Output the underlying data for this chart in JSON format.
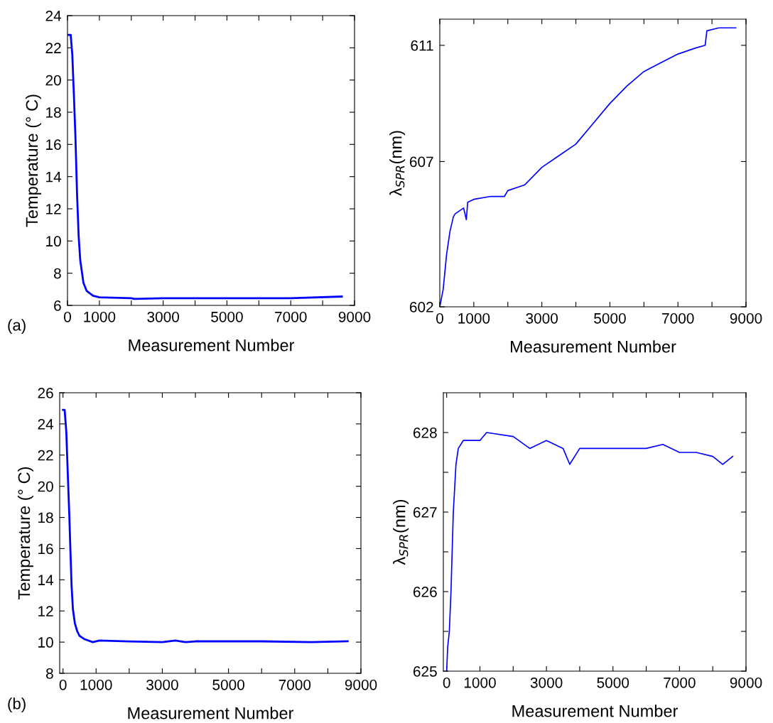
{
  "chart_data": [
    {
      "type": "line",
      "xlabel": "Measurement Number",
      "ylabel": "Temperature (° C)",
      "annotations": [
        "(a)"
      ],
      "xlim": [
        0,
        9000
      ],
      "xticks": [
        0,
        1000,
        {
          "value": 2000,
          "label": null
        },
        3000,
        {
          "value": 4000,
          "label": null
        },
        5000,
        {
          "value": 6000,
          "label": null
        },
        7000,
        {
          "value": 8000,
          "label": null
        },
        9000
      ],
      "ylim": [
        6,
        24
      ],
      "yticks": [
        6,
        8,
        10,
        12,
        14,
        16,
        18,
        20,
        22,
        24
      ],
      "grid": false,
      "marker": "none",
      "line_style": "solid",
      "series": [
        {
          "color": "#0000ff",
          "x": [
            0,
            100,
            150,
            200,
            250,
            300,
            350,
            400,
            500,
            600,
            800,
            1000,
            2000,
            2100,
            3000,
            5000,
            7000,
            8600
          ],
          "values": [
            22.8,
            22.8,
            21.6,
            19.1,
            16.4,
            12.9,
            10.3,
            8.8,
            7.4,
            6.9,
            6.6,
            6.5,
            6.45,
            6.4,
            6.45,
            6.45,
            6.45,
            6.55
          ]
        }
      ]
    },
    {
      "type": "line",
      "xlabel": "Measurement Number",
      "ylabel": "λ$_{SPR}$(nm)",
      "xlim": [
        0,
        9000
      ],
      "xticks": [
        0,
        1000,
        {
          "value": 2000,
          "label": null
        },
        3000,
        {
          "value": 4000,
          "label": null
        },
        5000,
        {
          "value": 6000,
          "label": null
        },
        7000,
        {
          "value": 8000,
          "label": null
        },
        9000
      ],
      "ylim": [
        602,
        611.9
      ],
      "yticks": [
        602,
        607,
        611
      ],
      "grid": false,
      "marker": "none",
      "line_style": "solid",
      "series": [
        {
          "color": "#0000ff",
          "x": [
            0,
            100,
            200,
            300,
            400,
            450,
            700,
            780,
            820,
            1000,
            1500,
            1900,
            2000,
            2500,
            3000,
            3500,
            4000,
            4500,
            5000,
            5500,
            6000,
            6500,
            7000,
            7500,
            7800,
            7850,
            8200,
            8700
          ],
          "values": [
            602.0,
            602.6,
            603.8,
            604.6,
            605.1,
            605.2,
            605.4,
            605.0,
            605.6,
            605.7,
            605.8,
            605.8,
            606.0,
            606.2,
            606.8,
            607.2,
            607.6,
            608.3,
            609.0,
            609.6,
            610.1,
            610.4,
            610.7,
            610.9,
            611.0,
            611.5,
            611.6,
            611.6
          ]
        }
      ]
    },
    {
      "type": "line",
      "xlabel": "Measurement Number",
      "ylabel": "Temperature (° C)",
      "annotations": [
        "(b)"
      ],
      "xlim": [
        -100,
        9000
      ],
      "xticks": [
        0,
        1000,
        {
          "value": 2000,
          "label": null
        },
        3000,
        {
          "value": 4000,
          "label": null
        },
        5000,
        {
          "value": 6000,
          "label": null
        },
        7000,
        {
          "value": 8000,
          "label": null
        },
        9000
      ],
      "ylim": [
        8,
        26
      ],
      "yticks": [
        8,
        10,
        12,
        14,
        16,
        18,
        20,
        22,
        24,
        26
      ],
      "grid": false,
      "marker": "none",
      "line_style": "solid",
      "series": [
        {
          "color": "#0000ff",
          "x": [
            0,
            50,
            100,
            150,
            190,
            230,
            260,
            300,
            360,
            430,
            500,
            640,
            900,
            1100,
            2000,
            3000,
            3400,
            3700,
            4000,
            6000,
            7500,
            8600
          ],
          "values": [
            24.9,
            24.9,
            23.5,
            20.5,
            18.2,
            15.5,
            13.6,
            12.1,
            11.2,
            10.7,
            10.4,
            10.2,
            10.0,
            10.1,
            10.05,
            10.0,
            10.1,
            10.0,
            10.05,
            10.05,
            10.0,
            10.05
          ]
        }
      ]
    },
    {
      "type": "line",
      "xlabel": "Measurement Number",
      "ylabel": "λ$_{SPR}$(nm)",
      "xlim": [
        -100,
        9000
      ],
      "xticks": [
        0,
        1000,
        {
          "value": 2000,
          "label": null
        },
        3000,
        {
          "value": 4000,
          "label": null
        },
        5000,
        {
          "value": 6000,
          "label": null
        },
        7000,
        {
          "value": 8000,
          "label": null
        },
        9000
      ],
      "ylim": [
        625,
        628.5
      ],
      "yticks": [
        625,
        {
          "value": 625.5,
          "label": null
        },
        626,
        {
          "value": 626.5,
          "label": null
        },
        627,
        {
          "value": 627.5,
          "label": null
        },
        628
      ],
      "grid": false,
      "marker": "none",
      "line_style": "solid",
      "series": [
        {
          "color": "#0000ff",
          "x": [
            0,
            30,
            80,
            130,
            200,
            280,
            350,
            500,
            1000,
            1200,
            2000,
            2500,
            3000,
            3500,
            3700,
            4000,
            5000,
            6000,
            6500,
            7000,
            7500,
            8000,
            8300,
            8600
          ],
          "values": [
            625.0,
            625.3,
            625.5,
            626.0,
            627.0,
            627.6,
            627.8,
            627.9,
            627.9,
            628.0,
            627.95,
            627.8,
            627.9,
            627.8,
            627.6,
            627.8,
            627.8,
            627.8,
            627.85,
            627.75,
            627.75,
            627.7,
            627.6,
            627.7
          ]
        }
      ]
    }
  ]
}
